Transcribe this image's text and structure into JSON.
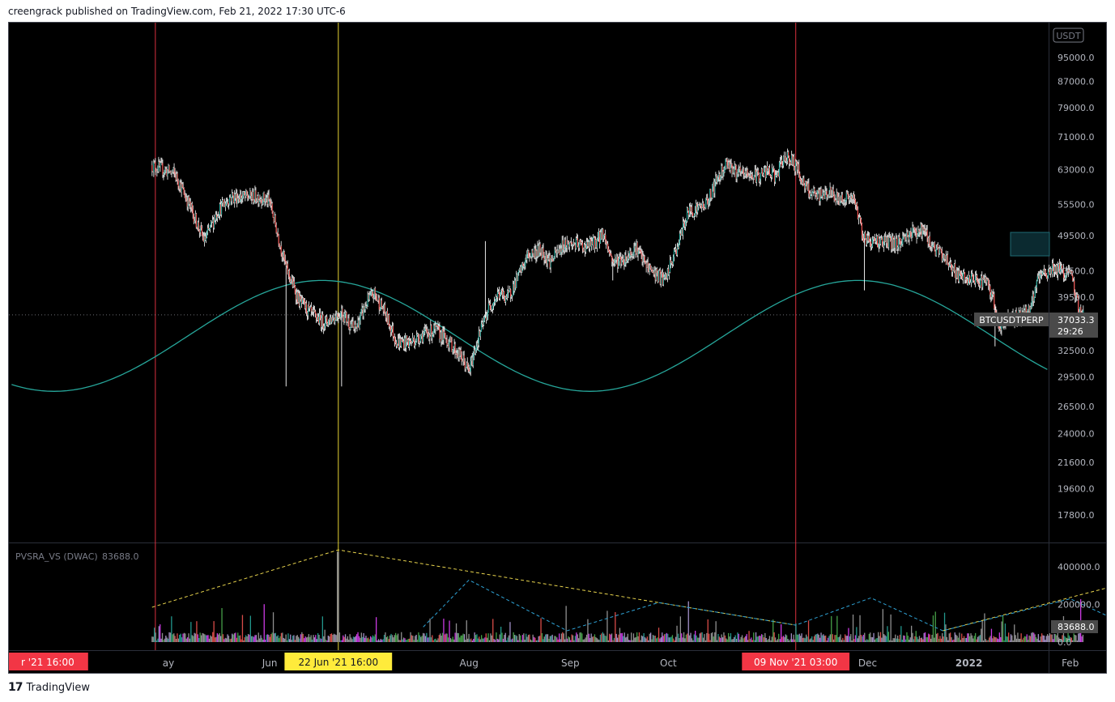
{
  "header": {
    "attribution": "creengrack published on TradingView.com, Feb 21, 2022 17:30 UTC-6"
  },
  "footer": {
    "brand": "TradingView",
    "logo_icon": "tradingview-logo-icon"
  },
  "colors": {
    "background": "#000000",
    "up_candle": "#26a69a",
    "down_candle": "#ef5350",
    "wick": "#ffffff",
    "sine": "#26a69a",
    "marker_red": "#f23645",
    "marker_yellow": "#ffeb3b",
    "trend_yellow": "#e8d44d",
    "trend_blue": "#2fa3d6"
  },
  "chart_data": [
    {
      "type": "line",
      "name": "price-pane",
      "symbol_label": "BTCUSDTPERP",
      "unit_label": "USDT",
      "last_price": "37033.3",
      "countdown": "29:26",
      "y_ticks": [
        "95000.0",
        "87000.0",
        "79000.0",
        "71000.0",
        "63000.0",
        "55500.0",
        "49500.0",
        "43500.0",
        "39500.0",
        "32500.0",
        "29500.0",
        "26500.0",
        "24000.0",
        "21600.0",
        "19600.0",
        "17800.0"
      ],
      "x_ticks": [
        "ay",
        "Jun",
        "Aug",
        "Sep",
        "Oct",
        "Dec",
        "2022",
        "Feb"
      ],
      "x_tick_days": [
        0,
        31,
        92,
        123,
        153,
        214,
        245,
        276
      ],
      "x_axis_origin": "2021-05-01",
      "price_path": [
        [
          -5,
          64000
        ],
        [
          2,
          62000
        ],
        [
          6,
          56000
        ],
        [
          11,
          48500
        ],
        [
          15,
          54000
        ],
        [
          19,
          57000
        ],
        [
          24,
          57000
        ],
        [
          28,
          57000
        ],
        [
          31,
          56000
        ],
        [
          36,
          44000
        ],
        [
          40,
          39000
        ],
        [
          44,
          37000
        ],
        [
          48,
          36000
        ],
        [
          53,
          37500
        ],
        [
          57,
          35000
        ],
        [
          61,
          39000
        ],
        [
          63,
          40000
        ],
        [
          66,
          37500
        ],
        [
          70,
          33500
        ],
        [
          74,
          33500
        ],
        [
          78,
          34500
        ],
        [
          82,
          35000
        ],
        [
          86,
          33500
        ],
        [
          90,
          31500
        ],
        [
          92,
          30000
        ],
        [
          94,
          33000
        ],
        [
          98,
          38000
        ],
        [
          101,
          40000
        ],
        [
          104,
          39500
        ],
        [
          107,
          42500
        ],
        [
          110,
          46000
        ],
        [
          114,
          47000
        ],
        [
          117,
          45000
        ],
        [
          121,
          48000
        ],
        [
          124,
          48000
        ],
        [
          128,
          47500
        ],
        [
          131,
          48500
        ],
        [
          133,
          50000
        ],
        [
          136,
          45000
        ],
        [
          140,
          45500
        ],
        [
          143,
          47500
        ],
        [
          146,
          44500
        ],
        [
          149,
          43000
        ],
        [
          152,
          42000
        ],
        [
          156,
          48000
        ],
        [
          159,
          54000
        ],
        [
          163,
          55000
        ],
        [
          165,
          56000
        ],
        [
          168,
          61000
        ],
        [
          171,
          65000
        ],
        [
          174,
          62000
        ],
        [
          177,
          62000
        ],
        [
          180,
          61500
        ],
        [
          183,
          62500
        ],
        [
          186,
          61500
        ],
        [
          189,
          66500
        ],
        [
          192,
          64000
        ],
        [
          195,
          59000
        ],
        [
          198,
          57000
        ],
        [
          202,
          58000
        ],
        [
          205,
          56500
        ],
        [
          208,
          57000
        ],
        [
          210,
          56000
        ],
        [
          213,
          49000
        ],
        [
          215,
          48500
        ],
        [
          219,
          48500
        ],
        [
          223,
          48000
        ],
        [
          227,
          50000
        ],
        [
          231,
          50500
        ],
        [
          234,
          47500
        ],
        [
          238,
          45500
        ],
        [
          242,
          42500
        ],
        [
          246,
          42000
        ],
        [
          250,
          42000
        ],
        [
          253,
          38500
        ],
        [
          254,
          35000
        ],
        [
          257,
          36500
        ],
        [
          261,
          37000
        ],
        [
          264,
          38000
        ],
        [
          266,
          42000
        ],
        [
          268,
          43000
        ],
        [
          271,
          44000
        ],
        [
          273,
          43500
        ],
        [
          276,
          43000
        ],
        [
          279,
          37500
        ],
        [
          280,
          37033
        ]
      ],
      "sine_wave": {
        "period_days": 164,
        "peak_day": 47,
        "high": 42000,
        "low": 28000
      },
      "markers": [
        {
          "day": -4,
          "label": "r '21   16:00",
          "color": "#f23645"
        },
        {
          "day": 52,
          "label": "22 Jun '21   16:00",
          "color": "#ffeb3b"
        },
        {
          "day": 192,
          "label": "09 Nov '21   03:00",
          "color": "#f23645"
        }
      ]
    },
    {
      "type": "bar",
      "name": "volume-pane",
      "indicator_label": "PVSRA_VS (DWAC)",
      "indicator_value": "83688.0",
      "last_volume": "83688.0",
      "y_ticks": [
        "400000.0",
        "200000.0",
        "0.0"
      ],
      "trendlines_yellow": [
        [
          [
            -5,
            185000
          ],
          [
            52,
            490000
          ],
          [
            192,
            90000
          ]
        ],
        [
          [
            237,
            60000
          ],
          [
            291,
            305000
          ]
        ]
      ],
      "trendlines_blue": [
        [
          [
            78,
            80000
          ],
          [
            92,
            330000
          ],
          [
            122,
            60000
          ],
          [
            150,
            210000
          ],
          [
            192,
            90000
          ],
          [
            215,
            235000
          ],
          [
            237,
            60000
          ],
          [
            276,
            230000
          ],
          [
            291,
            110000
          ]
        ]
      ]
    }
  ]
}
